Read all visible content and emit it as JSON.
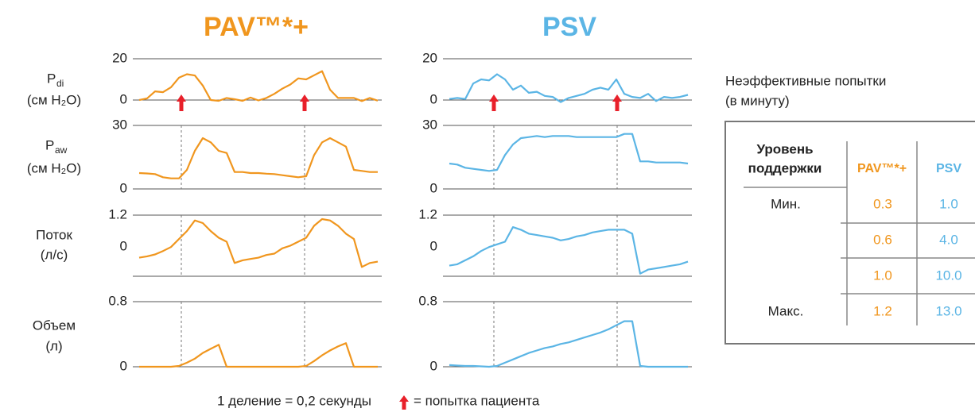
{
  "columns": [
    {
      "title": "PAV™*+"
    },
    {
      "title": "PSV"
    }
  ],
  "row_labels": [
    {
      "symbol": "P",
      "subscript": "di",
      "unit": "(см H₂O)"
    },
    {
      "symbol": "P",
      "subscript": "aw",
      "unit": "(см H₂O)"
    },
    {
      "name": "Поток",
      "unit": "(л/с)"
    },
    {
      "name": "Объем",
      "unit": "(л)"
    }
  ],
  "chart_data": [
    {
      "type": "line",
      "color": "#f0961e",
      "xlim": [
        0,
        3
      ],
      "ylim": [
        0,
        20
      ],
      "yticks": [
        0,
        20
      ],
      "efforts": [
        0.53,
        2.08
      ],
      "effort_marker": "arrow",
      "x": [
        0,
        0.1,
        0.2,
        0.3,
        0.4,
        0.5,
        0.6,
        0.7,
        0.8,
        0.9,
        1,
        1.1,
        1.2,
        1.3,
        1.4,
        1.5,
        1.6,
        1.7,
        1.8,
        1.9,
        2,
        2.1,
        2.2,
        2.3,
        2.4,
        2.5,
        2.6,
        2.7,
        2.8,
        2.9,
        3
      ],
      "values": [
        0,
        0.8,
        4.2,
        3.8,
        6.2,
        10.8,
        12.5,
        11.9,
        7,
        0,
        -0.4,
        1,
        0.4,
        -0.4,
        1.2,
        -0.2,
        1,
        3,
        5.5,
        7.5,
        10.5,
        10,
        12,
        14,
        5,
        1,
        1,
        1,
        -0.5,
        1,
        -0.3
      ]
    },
    {
      "type": "line",
      "color": "#f0961e",
      "xlim": [
        0,
        3
      ],
      "ylim": [
        0,
        30
      ],
      "yticks": [
        0,
        30
      ],
      "efforts": [
        0.53,
        2.08
      ],
      "effort_marker": "dashed",
      "x": [
        0,
        0.1,
        0.2,
        0.3,
        0.4,
        0.5,
        0.6,
        0.7,
        0.8,
        0.9,
        1,
        1.1,
        1.2,
        1.3,
        1.4,
        1.5,
        1.6,
        1.7,
        1.8,
        1.9,
        2,
        2.1,
        2.2,
        2.3,
        2.4,
        2.5,
        2.6,
        2.7,
        2.8,
        2.9,
        3
      ],
      "values": [
        7.5,
        7.3,
        7,
        5.5,
        5,
        5,
        9,
        18,
        24,
        22,
        18,
        17,
        8,
        8,
        7.5,
        7.5,
        7.2,
        7,
        6.5,
        6,
        5.5,
        6,
        16,
        22,
        24,
        22,
        20,
        9,
        8.5,
        8,
        8
      ]
    },
    {
      "type": "line",
      "color": "#f0961e",
      "xlim": [
        0,
        3
      ],
      "ylim": [
        -1.1,
        1.2
      ],
      "yticks": [
        0,
        1.2
      ],
      "efforts": [
        0.53,
        2.08
      ],
      "effort_marker": "dashed",
      "x": [
        0,
        0.1,
        0.2,
        0.3,
        0.4,
        0.5,
        0.6,
        0.7,
        0.8,
        0.9,
        1,
        1.1,
        1.2,
        1.3,
        1.4,
        1.5,
        1.6,
        1.7,
        1.8,
        1.9,
        2,
        2.1,
        2.2,
        2.3,
        2.4,
        2.5,
        2.6,
        2.7,
        2.8,
        2.9,
        3
      ],
      "values": [
        -0.4,
        -0.35,
        -0.28,
        -0.15,
        0,
        0.3,
        0.6,
        1.0,
        0.9,
        0.6,
        0.35,
        0.2,
        -0.6,
        -0.5,
        -0.45,
        -0.4,
        -0.3,
        -0.25,
        -0.05,
        0.05,
        0.2,
        0.35,
        0.8,
        1.05,
        1.0,
        0.8,
        0.5,
        0.3,
        -0.75,
        -0.6,
        -0.55
      ]
    },
    {
      "type": "line",
      "color": "#f0961e",
      "xlim": [
        0,
        3
      ],
      "ylim": [
        0,
        0.8
      ],
      "yticks": [
        0,
        0.8
      ],
      "efforts": [
        0.53,
        2.08
      ],
      "effort_marker": "dashed",
      "x": [
        0,
        0.1,
        0.2,
        0.3,
        0.4,
        0.5,
        0.6,
        0.7,
        0.8,
        0.9,
        1,
        1.1,
        1.2,
        1.3,
        1.4,
        1.5,
        1.6,
        1.7,
        1.8,
        1.9,
        2,
        2.1,
        2.2,
        2.3,
        2.4,
        2.5,
        2.6,
        2.7,
        2.8,
        2.9,
        3
      ],
      "values": [
        0,
        0,
        0,
        0,
        0,
        0.01,
        0.05,
        0.1,
        0.17,
        0.22,
        0.27,
        0,
        0,
        0,
        0,
        0,
        0,
        0,
        0,
        0,
        0,
        0.01,
        0.07,
        0.14,
        0.2,
        0.25,
        0.29,
        0,
        0,
        0,
        0
      ]
    },
    {
      "type": "line",
      "color": "#5bb5e5",
      "xlim": [
        0,
        3
      ],
      "ylim": [
        0,
        20
      ],
      "yticks": [
        0,
        20
      ],
      "efforts": [
        0.56,
        2.11
      ],
      "effort_marker": "arrow",
      "x": [
        0,
        0.1,
        0.2,
        0.3,
        0.4,
        0.5,
        0.6,
        0.7,
        0.8,
        0.9,
        1,
        1.1,
        1.2,
        1.3,
        1.4,
        1.5,
        1.6,
        1.7,
        1.8,
        1.9,
        2,
        2.1,
        2.2,
        2.3,
        2.4,
        2.5,
        2.6,
        2.7,
        2.8,
        2.9,
        3
      ],
      "values": [
        0.5,
        1,
        0.5,
        8,
        10,
        9.5,
        12.5,
        10,
        5,
        7,
        3.5,
        4,
        2,
        1.5,
        -1,
        1,
        2,
        3,
        5,
        6,
        5,
        10,
        3,
        1.5,
        1,
        3,
        -0.5,
        1.5,
        1,
        1.5,
        2.5
      ]
    },
    {
      "type": "line",
      "color": "#5bb5e5",
      "xlim": [
        0,
        3
      ],
      "ylim": [
        0,
        30
      ],
      "yticks": [
        0,
        30
      ],
      "efforts": [
        0.56,
        2.11
      ],
      "effort_marker": "dashed",
      "x": [
        0,
        0.1,
        0.2,
        0.3,
        0.4,
        0.5,
        0.6,
        0.7,
        0.8,
        0.9,
        1,
        1.1,
        1.2,
        1.3,
        1.4,
        1.5,
        1.6,
        1.7,
        1.8,
        1.9,
        2,
        2.1,
        2.2,
        2.3,
        2.4,
        2.5,
        2.6,
        2.7,
        2.8,
        2.9,
        3
      ],
      "values": [
        12,
        11.5,
        10,
        9.5,
        9,
        8.5,
        9,
        16,
        21,
        24,
        24.5,
        25,
        24.5,
        25,
        25,
        25,
        24.5,
        24.5,
        24.5,
        24.5,
        24.5,
        24.5,
        26,
        26,
        13,
        13,
        12.5,
        12.5,
        12.5,
        12.5,
        12
      ]
    },
    {
      "type": "line",
      "color": "#5bb5e5",
      "xlim": [
        0,
        3
      ],
      "ylim": [
        -1.1,
        1.2
      ],
      "yticks": [
        0,
        1.2
      ],
      "efforts": [
        0.56,
        2.11
      ],
      "effort_marker": "dashed",
      "x": [
        0,
        0.1,
        0.2,
        0.3,
        0.4,
        0.5,
        0.6,
        0.7,
        0.8,
        0.9,
        1,
        1.1,
        1.2,
        1.3,
        1.4,
        1.5,
        1.6,
        1.7,
        1.8,
        1.9,
        2,
        2.1,
        2.2,
        2.3,
        2.4,
        2.5,
        2.6,
        2.7,
        2.8,
        2.9,
        3
      ],
      "values": [
        -0.7,
        -0.65,
        -0.5,
        -0.35,
        -0.15,
        0,
        0.1,
        0.2,
        0.75,
        0.65,
        0.5,
        0.45,
        0.4,
        0.35,
        0.25,
        0.3,
        0.4,
        0.45,
        0.55,
        0.6,
        0.65,
        0.65,
        0.65,
        0.5,
        -1.0,
        -0.85,
        -0.8,
        -0.75,
        -0.7,
        -0.65,
        -0.55
      ]
    },
    {
      "type": "line",
      "color": "#5bb5e5",
      "xlim": [
        0,
        3
      ],
      "ylim": [
        0,
        0.8
      ],
      "yticks": [
        0,
        0.8
      ],
      "efforts": [
        0.56,
        2.11
      ],
      "effort_marker": "dashed",
      "x": [
        0,
        0.1,
        0.2,
        0.3,
        0.4,
        0.5,
        0.6,
        0.7,
        0.8,
        0.9,
        1,
        1.1,
        1.2,
        1.3,
        1.4,
        1.5,
        1.6,
        1.7,
        1.8,
        1.9,
        2,
        2.1,
        2.2,
        2.3,
        2.4,
        2.5,
        2.6,
        2.7,
        2.8,
        2.9,
        3
      ],
      "values": [
        0.02,
        0.015,
        0.01,
        0.01,
        0.005,
        0,
        0.01,
        0.05,
        0.09,
        0.13,
        0.17,
        0.2,
        0.23,
        0.25,
        0.28,
        0.3,
        0.33,
        0.36,
        0.39,
        0.42,
        0.46,
        0.51,
        0.56,
        0.56,
        0.01,
        0,
        0,
        0,
        0,
        0,
        0
      ]
    }
  ],
  "table": {
    "title": [
      "Неэффективные попытки",
      "(в минуту)"
    ],
    "header": [
      [
        "Уровень",
        "поддержки"
      ],
      "PAV™*+",
      "PSV"
    ],
    "rows": [
      [
        "Мин.",
        "0.3",
        "1.0"
      ],
      [
        null,
        "0.6",
        "4.0"
      ],
      [
        null,
        "1.0",
        "10.0"
      ],
      [
        "Макс.",
        "1.2",
        "13.0"
      ]
    ]
  },
  "footer": {
    "scale_note": "1 деление = 0,2 секунды",
    "legend": "= попытка пациента"
  }
}
